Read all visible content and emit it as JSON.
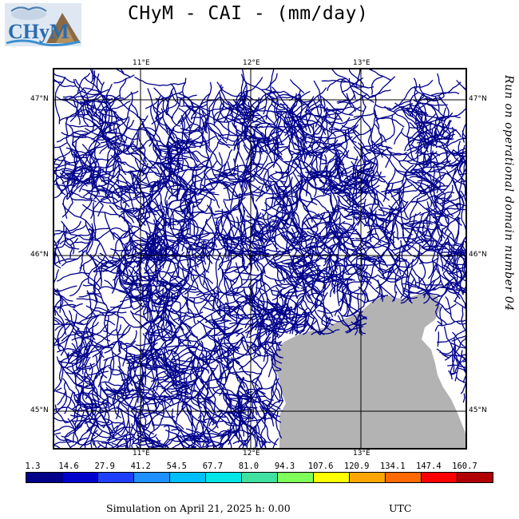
{
  "title": "CHyM - CAI - (mm/day)",
  "side_text": "Run on operational domain number 04",
  "logo": {
    "text": "CHyM",
    "icon": "chym-logo-icon"
  },
  "axes": {
    "top_lon_labels": [
      "11°E",
      "12°E",
      "13°E"
    ],
    "bottom_lon_labels": [
      "11°E",
      "12°E",
      "13°E"
    ],
    "left_lat_labels": [
      "47°N",
      "46°N",
      "45°N"
    ],
    "right_lat_labels": [
      "47°N",
      "46°N",
      "45°N"
    ]
  },
  "colorbar": {
    "labels": [
      "1.3",
      "14.6",
      "27.9",
      "41.2",
      "54.5",
      "67.7",
      "81.0",
      "94.3",
      "107.6",
      "120.9",
      "134.1",
      "147.4",
      "160.7"
    ],
    "colors": [
      "#00008b",
      "#0000cd",
      "#1f3fff",
      "#1e90ff",
      "#00bfff",
      "#00e5e5",
      "#40e0a0",
      "#7fff5a",
      "#ffff00",
      "#ffa500",
      "#ff6a00",
      "#ff0000",
      "#b00000"
    ]
  },
  "footer": {
    "simulation": "Simulation on April 21, 2025 h: 0.00",
    "tz": "UTC"
  },
  "colors": {
    "river": "#00008b",
    "sea": "#b3b3b3",
    "grid": "#000000"
  }
}
